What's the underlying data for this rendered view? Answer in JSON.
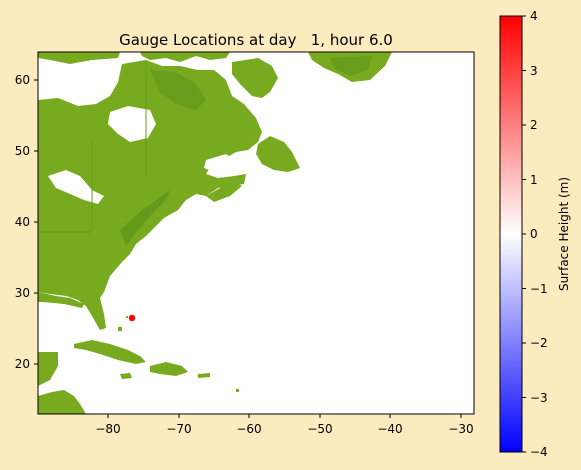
{
  "title": "Gauge Locations at day   1, hour 6.0",
  "map": {
    "x_ticks": [
      "−80",
      "−70",
      "−60",
      "−50",
      "−40",
      "−30"
    ],
    "y_ticks": [
      "60",
      "50",
      "40",
      "30",
      "20"
    ],
    "lon_range": [
      -89.5,
      -28.7
    ],
    "lat_range": [
      12.8,
      63.8
    ],
    "land_color": "#77aa1f",
    "land_dark_color": "#5a8e18",
    "water_color": "#ffffff",
    "background_color": "#fdebc0",
    "gauge": {
      "lon": -76.5,
      "lat": 26.5,
      "color": "#ff0000"
    }
  },
  "colorbar": {
    "label": "Surface Height (m)",
    "ticks": [
      "4",
      "3",
      "2",
      "1",
      "0",
      "−1",
      "−2",
      "−3",
      "−4"
    ],
    "range": [
      -4,
      4
    ],
    "colors": [
      "#0000ff",
      "#ffffff",
      "#ff0000"
    ]
  }
}
